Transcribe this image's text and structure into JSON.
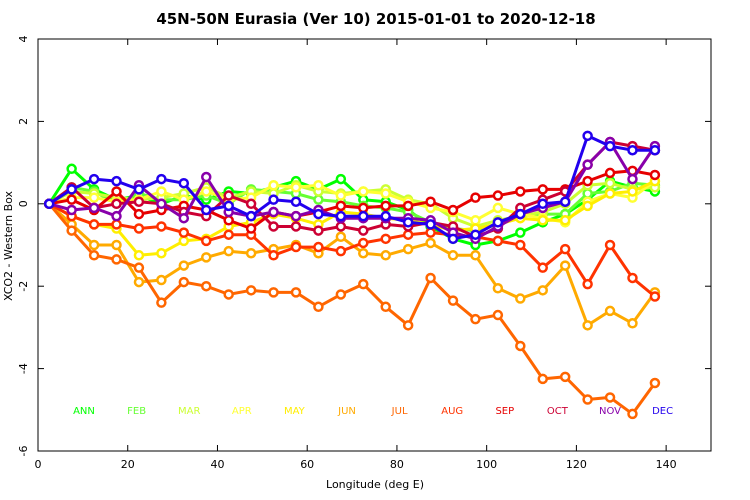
{
  "chart_data": {
    "type": "line",
    "title": "45N-50N Eurasia (Ver 10)   2015-01-01 to 2020-12-18",
    "xlabel": "Longitude (deg E)",
    "ylabel": "XCO2 - Western Box",
    "xlim": [
      0,
      150
    ],
    "ylim": [
      -6,
      4
    ],
    "xticks": [
      0,
      20,
      40,
      60,
      80,
      100,
      120,
      140
    ],
    "yticks": [
      -6,
      -4,
      -2,
      0,
      2,
      4
    ],
    "x": [
      2.5,
      7.5,
      12.5,
      17.5,
      22.5,
      27.5,
      32.5,
      37.5,
      42.5,
      47.5,
      52.5,
      57.5,
      62.5,
      67.5,
      72.5,
      77.5,
      82.5,
      87.5,
      92.5,
      97.5,
      102.5,
      107.5,
      112.5,
      117.5,
      122.5,
      127.5,
      132.5,
      137.5
    ],
    "series": [
      {
        "name": "ANN",
        "color": "#00ff00",
        "values": [
          0,
          0.85,
          0.35,
          0.1,
          0.2,
          0,
          0.2,
          0.1,
          0.3,
          0.25,
          0.4,
          0.55,
          0.35,
          0.6,
          0.1,
          0.05,
          -0.15,
          -0.55,
          -0.85,
          -1.0,
          -0.9,
          -0.7,
          -0.45,
          -0.25,
          0.1,
          0.55,
          0.4,
          0.3
        ]
      },
      {
        "name": "FEB",
        "color": "#66ff33",
        "values": [
          0,
          0.4,
          0.3,
          0.0,
          0.25,
          0.1,
          0.1,
          0.2,
          0.0,
          0.35,
          0.3,
          0.25,
          0.1,
          0.05,
          -0.05,
          -0.1,
          -0.2,
          -0.45,
          -0.6,
          -0.65,
          -0.5,
          -0.3,
          -0.25,
          -0.25,
          0.25,
          0.3,
          0.5,
          0.45
        ]
      },
      {
        "name": "MAR",
        "color": "#ccff33",
        "values": [
          0,
          0.3,
          0.25,
          0.15,
          0.1,
          0.15,
          0.25,
          0.4,
          0.15,
          0.3,
          0.25,
          0.45,
          0.3,
          0.25,
          0.3,
          0.35,
          0.1,
          0.0,
          -0.35,
          -0.55,
          -0.4,
          -0.3,
          -0.2,
          0.0,
          0.45,
          0.5,
          0.35,
          0.4
        ]
      },
      {
        "name": "APR",
        "color": "#ffff33",
        "values": [
          0,
          0.15,
          0.15,
          0.05,
          0.1,
          0.3,
          0.1,
          0.3,
          0.1,
          0.15,
          0.45,
          0.4,
          0.45,
          0.2,
          0.3,
          0.25,
          0.05,
          -0.1,
          -0.2,
          -0.4,
          -0.1,
          -0.25,
          -0.35,
          -0.45,
          0.05,
          0.25,
          0.15,
          0.55
        ]
      },
      {
        "name": "MAY",
        "color": "#ffee00",
        "values": [
          0,
          -0.3,
          -0.5,
          -0.6,
          -1.25,
          -1.2,
          -0.9,
          -0.85,
          -0.55,
          -0.45,
          -0.25,
          -0.35,
          -0.5,
          -0.2,
          -0.25,
          -0.35,
          -0.4,
          -0.5,
          -0.65,
          -0.6,
          -0.5,
          -0.35,
          -0.4,
          -0.4,
          -0.05,
          0.25,
          0.3,
          0.55
        ]
      },
      {
        "name": "JUN",
        "color": "#ffaa00",
        "values": [
          0,
          -0.5,
          -1.0,
          -1.0,
          -1.9,
          -1.85,
          -1.5,
          -1.3,
          -1.15,
          -1.2,
          -1.1,
          -1.0,
          -1.2,
          -0.8,
          -1.2,
          -1.25,
          -1.1,
          -0.95,
          -1.25,
          -1.25,
          -2.05,
          -2.3,
          -2.1,
          -1.5,
          -2.95,
          -2.6,
          -2.9,
          -2.15
        ]
      },
      {
        "name": "JUL",
        "color": "#ff6600",
        "values": [
          0,
          -0.65,
          -1.25,
          -1.35,
          -1.55,
          -2.4,
          -1.9,
          -2.0,
          -2.2,
          -2.1,
          -2.15,
          -2.15,
          -2.5,
          -2.2,
          -1.95,
          -2.5,
          -2.95,
          -1.8,
          -2.35,
          -2.8,
          -2.7,
          -3.45,
          -4.25,
          -4.2,
          -4.75,
          -4.7,
          -5.1,
          -4.35
        ]
      },
      {
        "name": "AUG",
        "color": "#ff3300",
        "values": [
          0,
          -0.3,
          -0.5,
          -0.5,
          -0.6,
          -0.55,
          -0.7,
          -0.9,
          -0.75,
          -0.75,
          -1.25,
          -1.05,
          -1.05,
          -1.15,
          -0.95,
          -0.85,
          -0.75,
          -0.7,
          -0.75,
          -0.8,
          -0.9,
          -1.0,
          -1.55,
          -1.1,
          -1.95,
          -1.0,
          -1.8,
          -2.25
        ]
      },
      {
        "name": "SEP",
        "color": "#e60000",
        "values": [
          0,
          0.1,
          -0.15,
          0.3,
          -0.25,
          -0.15,
          -0.05,
          -0.15,
          -0.4,
          -0.6,
          -0.2,
          -0.3,
          -0.2,
          -0.05,
          -0.1,
          -0.05,
          -0.05,
          0.05,
          -0.15,
          0.15,
          0.2,
          0.3,
          0.35,
          0.35,
          0.55,
          0.75,
          0.8,
          0.7
        ]
      },
      {
        "name": "OCT",
        "color": "#cc0033",
        "values": [
          0,
          0.4,
          -0.1,
          0.0,
          0.05,
          0.0,
          -0.2,
          -0.3,
          0.2,
          0.0,
          -0.55,
          -0.55,
          -0.65,
          -0.55,
          -0.65,
          -0.5,
          -0.55,
          -0.45,
          -0.55,
          -0.8,
          -0.6,
          -0.1,
          0.1,
          0.3,
          0.95,
          1.5,
          1.4,
          1.3
        ]
      },
      {
        "name": "NOV",
        "color": "#8800aa",
        "values": [
          0,
          -0.15,
          -0.1,
          -0.3,
          0.45,
          0.0,
          -0.35,
          0.65,
          -0.2,
          -0.3,
          -0.2,
          -0.3,
          -0.15,
          -0.35,
          -0.35,
          -0.35,
          -0.35,
          -0.4,
          -0.7,
          -0.85,
          -0.55,
          -0.25,
          -0.1,
          0.05,
          0.95,
          1.5,
          0.6,
          1.4
        ]
      },
      {
        "name": "DEC",
        "color": "#2200ee",
        "values": [
          0,
          0.35,
          0.6,
          0.55,
          0.35,
          0.6,
          0.5,
          -0.15,
          -0.05,
          -0.3,
          0.1,
          0.05,
          -0.25,
          -0.3,
          -0.3,
          -0.3,
          -0.45,
          -0.5,
          -0.85,
          -0.75,
          -0.45,
          -0.25,
          0.0,
          0.05,
          1.65,
          1.4,
          1.3,
          1.3
        ]
      }
    ]
  }
}
